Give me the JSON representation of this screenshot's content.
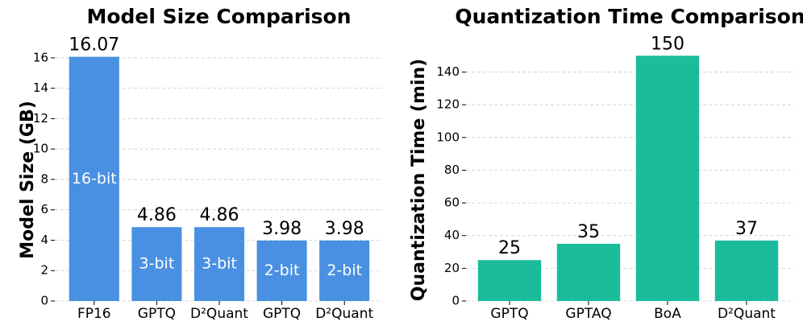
{
  "chart_data": [
    {
      "type": "bar",
      "title": "Model Size Comparison",
      "ylabel": "Model Size (GB)",
      "categories": [
        "FP16",
        "GPTQ",
        "D²Quant",
        "GPTQ",
        "D²Quant"
      ],
      "values": [
        16.07,
        4.86,
        4.86,
        3.98,
        3.98
      ],
      "bar_labels": [
        "16-bit",
        "3-bit",
        "3-bit",
        "2-bit",
        "2-bit"
      ],
      "color": "#4a90e2",
      "ylim": [
        0,
        17
      ],
      "yticks": [
        0,
        2,
        4,
        6,
        8,
        10,
        12,
        14,
        16
      ],
      "grid": true
    },
    {
      "type": "bar",
      "title": "Quantization Time Comparison",
      "ylabel": "Quantization Time (min)",
      "categories": [
        "GPTQ",
        "GPTAQ",
        "BoA",
        "D²Quant"
      ],
      "values": [
        25,
        35,
        150,
        37
      ],
      "color": "#1abc9c",
      "ylim": [
        0,
        158
      ],
      "yticks": [
        0,
        20,
        40,
        60,
        80,
        100,
        120,
        140
      ],
      "grid": true
    }
  ]
}
